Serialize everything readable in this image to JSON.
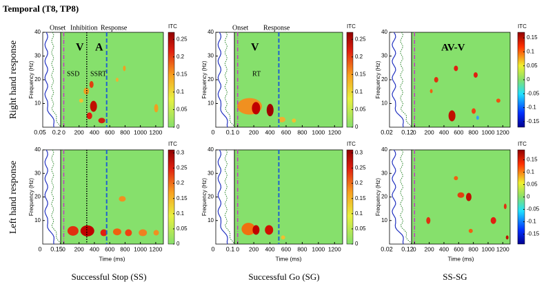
{
  "title": "Temporal (T8, TP8)",
  "row_labels": [
    "Right hand response",
    "Left hand response"
  ],
  "column_labels": [
    "Successful Stop (SS)",
    "Successful Go (SG)",
    "SS-SG"
  ],
  "panels": [
    {
      "y_label": "Frequency (Hz)",
      "ylim": [
        0,
        40
      ],
      "yticks": [
        10,
        20,
        30,
        40
      ],
      "xlim": [
        -40,
        1300
      ],
      "xticks": [
        0,
        200,
        400,
        600,
        800,
        1000,
        1200
      ],
      "side_ticks": [
        0.05,
        0.2
      ],
      "colorbar_label": "ITC",
      "colorbar_lim": [
        0,
        0.27
      ],
      "colorbar_ticks": [
        0,
        0.05,
        0.1,
        0.15,
        0.2,
        0.25
      ],
      "colormap": "green-red",
      "event_lines": [
        {
          "time": 0,
          "color": "#c040c0",
          "dash": "dashdot"
        },
        {
          "time": 300,
          "color": "#000000",
          "dash": "dotted"
        },
        {
          "time": 560,
          "color": "#2060d0",
          "dash": "dashed"
        }
      ],
      "annotations": [
        "Onset",
        "Inhibition",
        "Response",
        "V",
        "A",
        "SSD",
        "SSRT"
      ]
    },
    {
      "y_label": "Frequency (Hz)",
      "ylim": [
        0,
        40
      ],
      "yticks": [
        10,
        20,
        30,
        40
      ],
      "xlim": [
        -40,
        1300
      ],
      "xticks": [
        0,
        200,
        400,
        600,
        800,
        1000,
        1200
      ],
      "side_ticks": [
        0,
        0.1
      ],
      "colorbar_label": "ITC",
      "colorbar_lim": [
        0,
        0.27
      ],
      "colorbar_ticks": [
        0,
        0.05,
        0.1,
        0.15,
        0.2,
        0.25
      ],
      "colormap": "green-red",
      "event_lines": [
        {
          "time": 0,
          "color": "#c040c0",
          "dash": "dashdot"
        },
        {
          "time": 510,
          "color": "#2060d0",
          "dash": "dashed"
        }
      ],
      "annotations": [
        "Onset",
        "Response",
        "V",
        "RT"
      ]
    },
    {
      "y_label": "Frequency (Hz)",
      "ylim": [
        0,
        40
      ],
      "yticks": [
        10,
        20,
        30,
        40
      ],
      "xlim": [
        -40,
        1300
      ],
      "xticks": [
        0,
        200,
        400,
        600,
        800,
        1000,
        1200
      ],
      "side_ticks": [
        0.02,
        0.12
      ],
      "colorbar_label": "ITC",
      "colorbar_lim": [
        -0.17,
        0.17
      ],
      "colorbar_ticks": [
        -0.15,
        -0.1,
        -0.05,
        0,
        0.05,
        0.1,
        0.15
      ],
      "colormap": "jet",
      "event_lines": [
        {
          "time": 0,
          "color": "#c040c0",
          "dash": "dashdot"
        }
      ],
      "annotations": [
        "AV-V"
      ]
    },
    {
      "y_label": "Frequency (Hz)",
      "ylim": [
        0,
        40
      ],
      "yticks": [
        10,
        20,
        30,
        40
      ],
      "xlim": [
        -40,
        1300
      ],
      "xticks": [
        0,
        200,
        400,
        600,
        800,
        1000,
        1200
      ],
      "side_ticks": [
        0,
        0.15
      ],
      "x_label": "Time (ms)",
      "colorbar_label": "ITC",
      "colorbar_lim": [
        0,
        0.31
      ],
      "colorbar_ticks": [
        0,
        0.05,
        0.1,
        0.15,
        0.2,
        0.25,
        0.3
      ],
      "colormap": "green-red",
      "event_lines": [
        {
          "time": 0,
          "color": "#c040c0",
          "dash": "dashdot"
        },
        {
          "time": 300,
          "color": "#000000",
          "dash": "dotted"
        },
        {
          "time": 560,
          "color": "#2060d0",
          "dash": "dashed"
        }
      ]
    },
    {
      "y_label": "Frequency (Hz)",
      "ylim": [
        0,
        40
      ],
      "yticks": [
        10,
        20,
        30,
        40
      ],
      "xlim": [
        -40,
        1300
      ],
      "xticks": [
        0,
        200,
        400,
        600,
        800,
        1000,
        1200
      ],
      "side_ticks": [
        0,
        0.1
      ],
      "x_label": "Time (ms)",
      "colorbar_label": "ITC",
      "colorbar_lim": [
        0,
        0.31
      ],
      "colorbar_ticks": [
        0,
        0.05,
        0.1,
        0.15,
        0.2,
        0.25,
        0.3
      ],
      "colormap": "green-red",
      "event_lines": [
        {
          "time": 0,
          "color": "#c040c0",
          "dash": "dashdot"
        },
        {
          "time": 510,
          "color": "#2060d0",
          "dash": "dashed"
        }
      ]
    },
    {
      "y_label": "Frequency (Hz)",
      "ylim": [
        0,
        40
      ],
      "yticks": [
        10,
        20,
        30,
        40
      ],
      "xlim": [
        -40,
        1300
      ],
      "xticks": [
        0,
        200,
        400,
        600,
        800,
        1000,
        1200
      ],
      "side_ticks": [
        0.02,
        0.12
      ],
      "x_label": "Time (ms)",
      "colorbar_label": "ITC",
      "colorbar_lim": [
        -0.19,
        0.19
      ],
      "colorbar_ticks": [
        -0.15,
        -0.1,
        -0.05,
        0,
        0.05,
        0.1,
        0.15
      ],
      "colormap": "jet",
      "event_lines": [
        {
          "time": 0,
          "color": "#c040c0",
          "dash": "dashdot"
        }
      ]
    }
  ]
}
